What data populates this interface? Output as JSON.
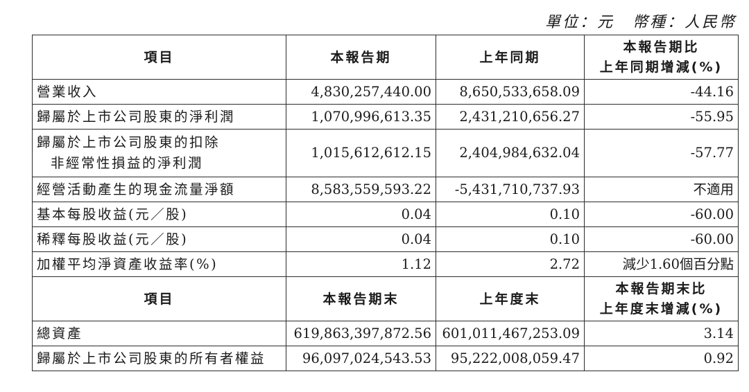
{
  "unit_line": {
    "unit_text": "單位：元",
    "currency_text": "幣種：人民幣"
  },
  "header_period": {
    "item": "項目",
    "col_current": "本報告期",
    "col_prior": "上年同期",
    "col_change_line1": "本報告期比",
    "col_change_line2": "上年同期增減(%)"
  },
  "period_rows": [
    {
      "label": "營業收入",
      "current": "4,830,257,440.00",
      "prior": "8,650,533,658.09",
      "change": "-44.16"
    },
    {
      "label": "歸屬於上市公司股東的淨利潤",
      "current": "1,070,996,613.35",
      "prior": "2,431,210,656.27",
      "change": "-55.95"
    },
    {
      "label_line1": "歸屬於上市公司股東的扣除",
      "label_line2": "非經常性損益的淨利潤",
      "current": "1,015,612,612.15",
      "prior": "2,404,984,632.04",
      "change": "-57.77"
    },
    {
      "label": "經營活動產生的現金流量淨額",
      "current": "8,583,559,593.22",
      "prior": "-5,431,710,737.93",
      "change": "不適用"
    },
    {
      "label": "基本每股收益(元／股)",
      "current": "0.04",
      "prior": "0.10",
      "change": "-60.00"
    },
    {
      "label": "稀釋每股收益(元／股)",
      "current": "0.04",
      "prior": "0.10",
      "change": "-60.00"
    },
    {
      "label": "加權平均淨資產收益率(%)",
      "current": "1.12",
      "prior": "2.72",
      "change": "減少1.60個百分點"
    }
  ],
  "header_end": {
    "item": "項目",
    "col_current": "本報告期末",
    "col_prior": "上年度末",
    "col_change_line1": "本報告期末比",
    "col_change_line2": "上年度末增減(%)"
  },
  "end_rows": [
    {
      "label": "總資產",
      "current": "619,863,397,872.56",
      "prior": "601,011,467,253.09",
      "change": "3.14"
    },
    {
      "label": "歸屬於上市公司股東的所有者權益",
      "current": "96,097,024,543.53",
      "prior": "95,222,008,059.47",
      "change": "0.92"
    }
  ]
}
